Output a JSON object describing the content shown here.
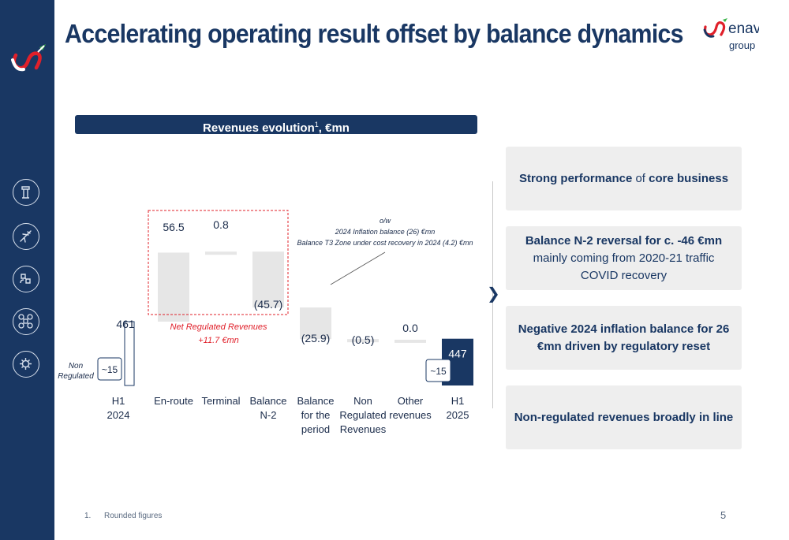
{
  "title": "Accelerating operating result offset by balance dynamics",
  "brand": {
    "name": "enav",
    "sub": "group"
  },
  "banner": {
    "text": "Revenues evolution",
    "sup": "1",
    "suffix": ", €mn"
  },
  "chart_data": {
    "type": "waterfall",
    "categories": [
      [
        "H1",
        "2024"
      ],
      [
        "En-route"
      ],
      [
        "Terminal"
      ],
      [
        "Balance",
        "N-2"
      ],
      [
        "Balance",
        "for the",
        "period"
      ],
      [
        "Non",
        "Regulated",
        "Revenues"
      ],
      [
        "Other",
        "revenues"
      ],
      [
        "H1",
        "2025"
      ]
    ],
    "values": [
      461,
      56.5,
      0.8,
      -45.7,
      -25.9,
      -0.5,
      0.0,
      447
    ],
    "value_labels": [
      "461",
      "56.5",
      "0.8",
      "(45.7)",
      "(25.9)",
      "(0.5)",
      "0.0",
      "447"
    ],
    "kinds": [
      "total",
      "delta",
      "delta",
      "delta",
      "delta",
      "delta",
      "delta",
      "total"
    ],
    "non_regulated_labels": [
      "~15",
      "~15"
    ],
    "non_regulated_legend": [
      "Non",
      "Regulated"
    ],
    "group_annotation": [
      "Net Regulated Revenues",
      "+11.7 €mn"
    ],
    "callout": [
      "o/w",
      "2024 Inflation balance  (26) €mn",
      "Balance T3 Zone under cost recovery in 2024 (4.2) €mn"
    ],
    "colors": {
      "delta": "#e6e6e6",
      "total_2025": "#193763",
      "total_2024_border": "#193763",
      "annotation": "#e0202a"
    }
  },
  "highlights": [
    [
      {
        "t": "Strong performance",
        "b": true
      },
      {
        "t": " of ",
        "b": false
      },
      {
        "t": "core business",
        "b": true
      }
    ],
    [
      {
        "t": "Balance N-2 reversal for c. -46 €mn",
        "b": true
      },
      {
        "t": " mainly coming from 2020-21 traffic COVID recovery",
        "b": false
      }
    ],
    [
      {
        "t": "Negative 2024 inflation balance for 26 €mn driven by regulatory reset",
        "b": true
      }
    ],
    [
      {
        "t": "Non-regulated revenues broadly in line",
        "b": true
      }
    ]
  ],
  "footnote": {
    "num": "1.",
    "text": "Rounded figures"
  },
  "page_number": "5",
  "sidebar_icons": [
    "control-tower-icon",
    "airplane-icon",
    "satellite-icon",
    "drone-icon",
    "gear-icon"
  ]
}
